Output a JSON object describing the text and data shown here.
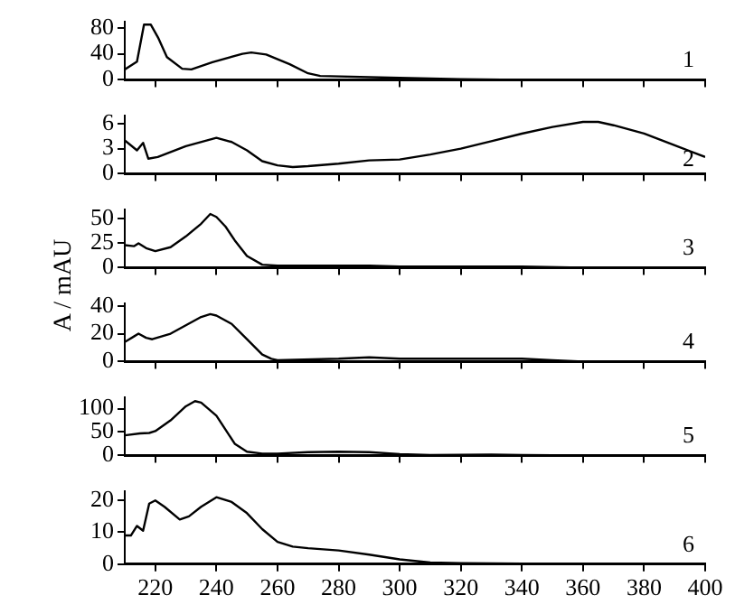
{
  "chart_data": [
    {
      "type": "line",
      "x": [
        210,
        214,
        216.3,
        218.5,
        220.9,
        223.8,
        228.8,
        231.8,
        238.7,
        248.5,
        251.4,
        256.3,
        264,
        270,
        274,
        300,
        320,
        340,
        400
      ],
      "series": [
        {
          "color": "#000000",
          "values": [
            16,
            28,
            85,
            85,
            65,
            35,
            17,
            16,
            27,
            40,
            42,
            39,
            24,
            10,
            6,
            3,
            1,
            0,
            0
          ]
        }
      ],
      "ylim": [
        0,
        90
      ],
      "yticks": [
        0,
        40,
        80
      ],
      "xlim": [
        210,
        400
      ],
      "xticks": [
        220,
        240,
        260,
        280,
        300,
        320,
        340,
        360,
        380,
        400
      ],
      "tick_labels": "y",
      "marker": "none",
      "grid": false,
      "legend": false,
      "annotations": [
        "1"
      ]
    },
    {
      "type": "line",
      "x": [
        210,
        214,
        216,
        217.7,
        220.8,
        230,
        240,
        245,
        250,
        255,
        260,
        265,
        270,
        280,
        290,
        300,
        310,
        320,
        330,
        340,
        350,
        360,
        365,
        370,
        380,
        390,
        400
      ],
      "series": [
        {
          "color": "#000000",
          "values": [
            4,
            2.8,
            3.7,
            1.8,
            2.0,
            3.3,
            4.3,
            3.8,
            2.8,
            1.5,
            1.0,
            0.8,
            0.9,
            1.2,
            1.6,
            1.7,
            2.3,
            3.0,
            3.9,
            4.8,
            5.6,
            6.2,
            6.2,
            5.8,
            4.8,
            3.4,
            2.0
          ]
        }
      ],
      "ylim": [
        0,
        7
      ],
      "yticks": [
        0,
        3,
        6
      ],
      "xlim": [
        210,
        400
      ],
      "xticks": [
        220,
        240,
        260,
        280,
        300,
        320,
        340,
        360,
        380,
        400
      ],
      "tick_labels": "y",
      "marker": "none",
      "grid": false,
      "legend": false,
      "annotations": [
        "2"
      ]
    },
    {
      "type": "line",
      "x": [
        210,
        213,
        214.5,
        217,
        220,
        225,
        230,
        235,
        238,
        240,
        243,
        246,
        250,
        255,
        260,
        280,
        290,
        300,
        330,
        340,
        360,
        400
      ],
      "series": [
        {
          "color": "#000000",
          "values": [
            23,
            22,
            25,
            20,
            17,
            21,
            32,
            45,
            55,
            52,
            42,
            28,
            12,
            3,
            2,
            2,
            2,
            1,
            1,
            1,
            0,
            0
          ]
        }
      ],
      "ylim": [
        0,
        60
      ],
      "yticks": [
        0,
        25,
        50
      ],
      "xlim": [
        210,
        400
      ],
      "xticks": [
        220,
        240,
        260,
        280,
        300,
        320,
        340,
        360,
        380,
        400
      ],
      "tick_labels": "y",
      "marker": "none",
      "grid": false,
      "legend": false,
      "ylabel": "A / mAU",
      "annotations": [
        "3"
      ]
    },
    {
      "type": "line",
      "x": [
        210,
        213,
        214.5,
        217,
        219,
        225,
        230,
        235,
        238,
        240,
        245,
        250,
        255,
        258,
        260,
        280,
        290,
        300,
        310,
        340,
        350,
        360,
        400
      ],
      "series": [
        {
          "color": "#000000",
          "values": [
            14,
            18,
            20,
            17,
            16,
            20,
            26,
            32,
            34,
            33,
            27,
            16,
            5,
            2,
            1,
            2,
            3,
            2,
            2,
            2,
            1,
            0,
            0
          ]
        }
      ],
      "ylim": [
        0,
        42
      ],
      "yticks": [
        0,
        20,
        40
      ],
      "xlim": [
        210,
        400
      ],
      "xticks": [
        220,
        240,
        260,
        280,
        300,
        320,
        340,
        360,
        380,
        400
      ],
      "tick_labels": "y",
      "marker": "none",
      "grid": false,
      "legend": false,
      "annotations": [
        "4"
      ]
    },
    {
      "type": "line",
      "x": [
        210,
        215,
        218,
        220,
        225,
        230,
        233,
        235,
        240,
        243,
        246,
        250,
        255,
        260,
        270,
        280,
        290,
        300,
        310,
        330,
        340,
        360,
        400
      ],
      "series": [
        {
          "color": "#000000",
          "values": [
            43,
            47,
            48,
            52,
            75,
            105,
            116,
            113,
            85,
            55,
            25,
            8,
            4,
            4,
            7,
            8,
            7,
            3,
            1,
            2,
            1,
            0,
            0
          ]
        }
      ],
      "ylim": [
        0,
        125
      ],
      "yticks": [
        0,
        50,
        100
      ],
      "xlim": [
        210,
        400
      ],
      "xticks": [
        220,
        240,
        260,
        280,
        300,
        320,
        340,
        360,
        380,
        400
      ],
      "tick_labels": "y",
      "marker": "none",
      "grid": false,
      "legend": false,
      "annotations": [
        "5"
      ]
    },
    {
      "type": "line",
      "x": [
        210,
        212,
        214,
        216,
        218,
        220,
        223,
        228,
        231,
        235,
        240,
        245,
        250,
        255,
        260,
        265,
        270,
        280,
        290,
        300,
        310,
        320,
        340,
        400
      ],
      "series": [
        {
          "color": "#000000",
          "values": [
            9,
            9,
            12,
            10.5,
            19,
            20,
            18,
            14,
            15,
            18,
            21,
            19.5,
            16,
            11,
            7,
            5.5,
            5,
            4.3,
            3,
            1.5,
            0.5,
            0.3,
            0.2,
            0
          ]
        }
      ],
      "ylim": [
        0,
        23
      ],
      "yticks": [
        0,
        10,
        20
      ],
      "xlim": [
        210,
        400
      ],
      "xticks": [
        220,
        240,
        260,
        280,
        300,
        320,
        340,
        360,
        380,
        400
      ],
      "marker": "none",
      "grid": false,
      "legend": false,
      "annotations": [
        "6"
      ]
    }
  ]
}
